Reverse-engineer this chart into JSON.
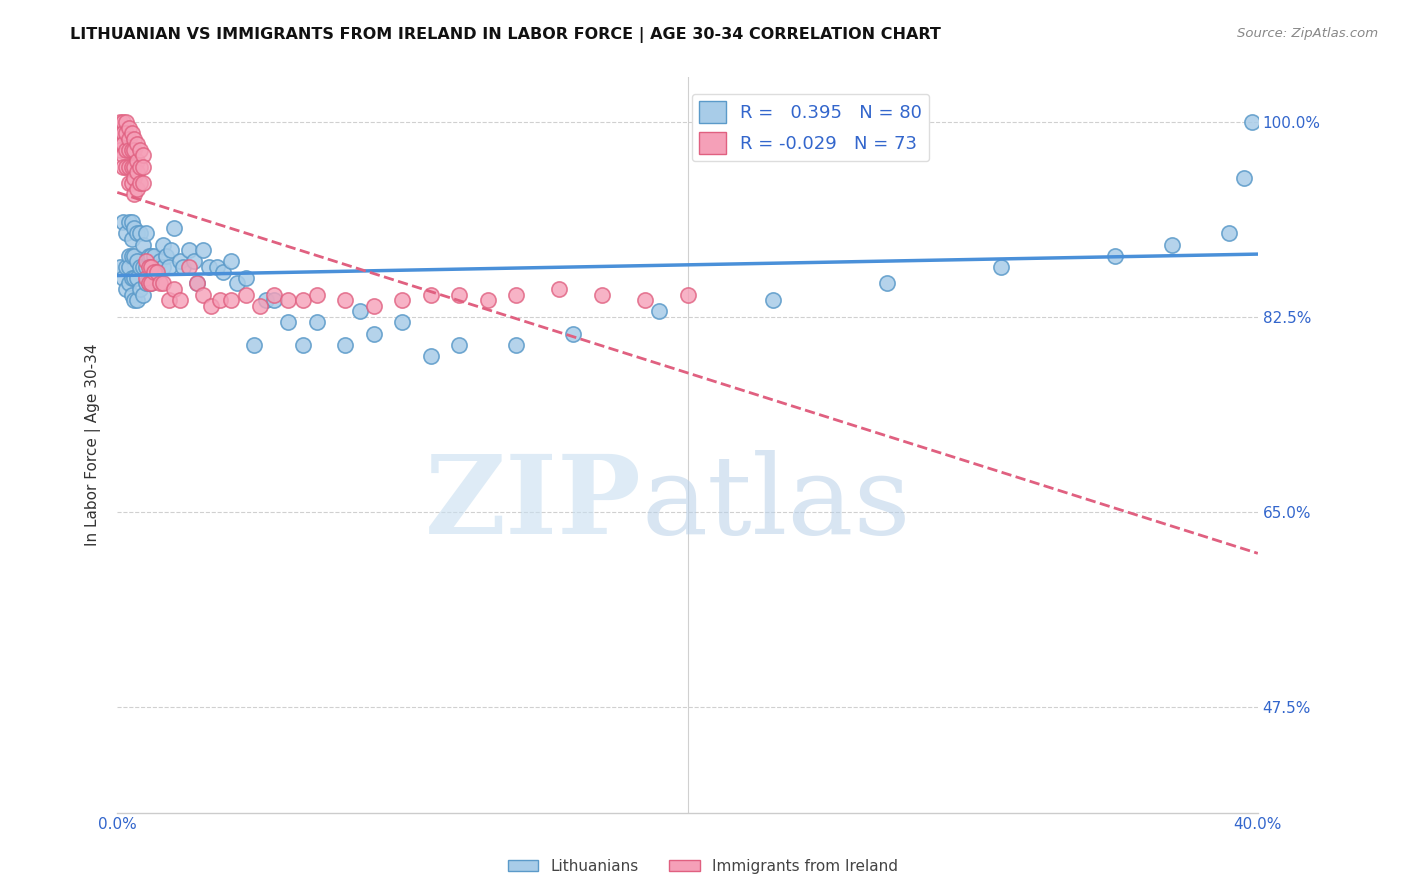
{
  "title": "LITHUANIAN VS IMMIGRANTS FROM IRELAND IN LABOR FORCE | AGE 30-34 CORRELATION CHART",
  "source": "Source: ZipAtlas.com",
  "ylabel": "In Labor Force | Age 30-34",
  "xlim": [
    0.0,
    0.4
  ],
  "ylim": [
    0.38,
    1.04
  ],
  "blue_R": 0.395,
  "blue_N": 80,
  "pink_R": -0.029,
  "pink_N": 73,
  "blue_color": "#a8cce8",
  "pink_color": "#f5a0b8",
  "blue_edge_color": "#5b9ac9",
  "pink_edge_color": "#e06080",
  "blue_line_color": "#4a90d9",
  "pink_line_color": "#e06080",
  "watermark_zip": "ZIP",
  "watermark_atlas": "atlas",
  "blue_scatter_x": [
    0.001,
    0.002,
    0.002,
    0.003,
    0.003,
    0.003,
    0.004,
    0.004,
    0.004,
    0.004,
    0.005,
    0.005,
    0.005,
    0.005,
    0.005,
    0.006,
    0.006,
    0.006,
    0.006,
    0.007,
    0.007,
    0.007,
    0.007,
    0.008,
    0.008,
    0.008,
    0.009,
    0.009,
    0.009,
    0.01,
    0.01,
    0.01,
    0.011,
    0.011,
    0.012,
    0.012,
    0.013,
    0.014,
    0.015,
    0.016,
    0.016,
    0.017,
    0.018,
    0.019,
    0.02,
    0.022,
    0.023,
    0.025,
    0.027,
    0.028,
    0.03,
    0.032,
    0.035,
    0.037,
    0.04,
    0.042,
    0.045,
    0.048,
    0.052,
    0.055,
    0.06,
    0.065,
    0.07,
    0.08,
    0.085,
    0.09,
    0.1,
    0.11,
    0.12,
    0.14,
    0.16,
    0.19,
    0.23,
    0.27,
    0.31,
    0.35,
    0.37,
    0.39,
    0.395,
    0.398
  ],
  "blue_scatter_y": [
    0.87,
    0.91,
    0.86,
    0.9,
    0.87,
    0.85,
    0.91,
    0.88,
    0.87,
    0.855,
    0.91,
    0.895,
    0.88,
    0.86,
    0.845,
    0.905,
    0.88,
    0.86,
    0.84,
    0.9,
    0.875,
    0.86,
    0.84,
    0.9,
    0.87,
    0.85,
    0.89,
    0.87,
    0.845,
    0.9,
    0.87,
    0.855,
    0.88,
    0.855,
    0.88,
    0.855,
    0.88,
    0.87,
    0.875,
    0.89,
    0.87,
    0.88,
    0.87,
    0.885,
    0.905,
    0.875,
    0.87,
    0.885,
    0.875,
    0.855,
    0.885,
    0.87,
    0.87,
    0.865,
    0.875,
    0.855,
    0.86,
    0.8,
    0.84,
    0.84,
    0.82,
    0.8,
    0.82,
    0.8,
    0.83,
    0.81,
    0.82,
    0.79,
    0.8,
    0.8,
    0.81,
    0.83,
    0.84,
    0.855,
    0.87,
    0.88,
    0.89,
    0.9,
    0.95,
    1.0
  ],
  "pink_scatter_x": [
    0.001,
    0.001,
    0.001,
    0.001,
    0.002,
    0.002,
    0.002,
    0.002,
    0.002,
    0.003,
    0.003,
    0.003,
    0.003,
    0.004,
    0.004,
    0.004,
    0.004,
    0.004,
    0.005,
    0.005,
    0.005,
    0.005,
    0.006,
    0.006,
    0.006,
    0.006,
    0.006,
    0.007,
    0.007,
    0.007,
    0.007,
    0.008,
    0.008,
    0.008,
    0.009,
    0.009,
    0.009,
    0.01,
    0.01,
    0.011,
    0.011,
    0.012,
    0.012,
    0.013,
    0.014,
    0.015,
    0.016,
    0.018,
    0.02,
    0.022,
    0.025,
    0.028,
    0.03,
    0.033,
    0.036,
    0.04,
    0.045,
    0.05,
    0.055,
    0.06,
    0.065,
    0.07,
    0.08,
    0.09,
    0.1,
    0.11,
    0.12,
    0.13,
    0.14,
    0.155,
    0.17,
    0.185,
    0.2
  ],
  "pink_scatter_y": [
    1.0,
    0.99,
    0.98,
    0.975,
    1.0,
    0.99,
    0.98,
    0.97,
    0.96,
    1.0,
    0.99,
    0.975,
    0.96,
    0.995,
    0.985,
    0.975,
    0.96,
    0.945,
    0.99,
    0.975,
    0.96,
    0.945,
    0.985,
    0.975,
    0.96,
    0.95,
    0.935,
    0.98,
    0.965,
    0.955,
    0.94,
    0.975,
    0.96,
    0.945,
    0.97,
    0.96,
    0.945,
    0.875,
    0.86,
    0.87,
    0.855,
    0.87,
    0.855,
    0.865,
    0.865,
    0.855,
    0.855,
    0.84,
    0.85,
    0.84,
    0.87,
    0.855,
    0.845,
    0.835,
    0.84,
    0.84,
    0.845,
    0.835,
    0.845,
    0.84,
    0.84,
    0.845,
    0.84,
    0.835,
    0.84,
    0.845,
    0.845,
    0.84,
    0.845,
    0.85,
    0.845,
    0.84,
    0.845
  ],
  "ytick_positions": [
    0.475,
    0.65,
    0.825,
    1.0
  ],
  "ytick_labels": [
    "47.5%",
    "65.0%",
    "82.5%",
    "100.0%"
  ],
  "xtick_positions": [
    0.0,
    0.05,
    0.1,
    0.15,
    0.2,
    0.25,
    0.3,
    0.35,
    0.4
  ],
  "xtick_labels": [
    "0.0%",
    "",
    "",
    "",
    "",
    "",
    "",
    "",
    "40.0%"
  ]
}
